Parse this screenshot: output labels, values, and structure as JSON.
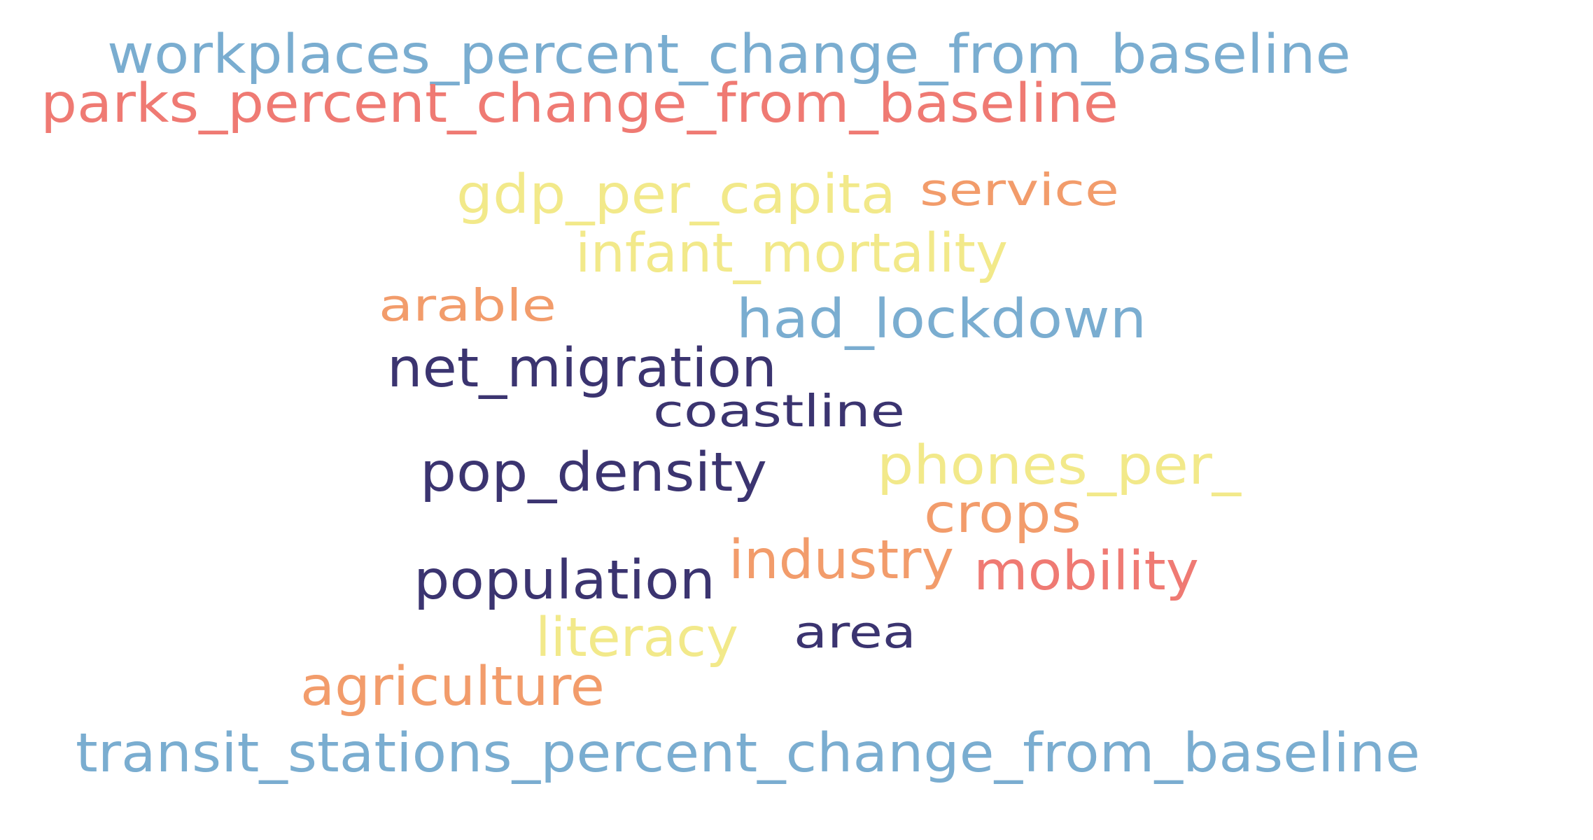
{
  "colors": {
    "blue": "#7aadd0",
    "red": "#ef7a73",
    "yellow": "#f2e98a",
    "orange": "#f29c6b",
    "navy": "#3b3470"
  },
  "words": [
    {
      "id": "workplaces",
      "text": "workplaces_percent_change_from_baseline",
      "color": "blue"
    },
    {
      "id": "parks",
      "text": "parks_percent_change_from_baseline",
      "color": "red"
    },
    {
      "id": "gdp",
      "text": "gdp_per_capita",
      "color": "yellow"
    },
    {
      "id": "service",
      "text": "service",
      "color": "orange"
    },
    {
      "id": "infant",
      "text": "infant_mortality",
      "color": "yellow"
    },
    {
      "id": "arable",
      "text": "arable",
      "color": "orange"
    },
    {
      "id": "lockdown",
      "text": "had_lockdown",
      "color": "blue"
    },
    {
      "id": "migration",
      "text": "net_migration",
      "color": "navy"
    },
    {
      "id": "coastline",
      "text": "coastline",
      "color": "navy"
    },
    {
      "id": "phones",
      "text": "phones_per_",
      "color": "yellow"
    },
    {
      "id": "density",
      "text": "pop_density",
      "color": "navy"
    },
    {
      "id": "crops",
      "text": "crops",
      "color": "orange"
    },
    {
      "id": "industry",
      "text": "industry",
      "color": "orange"
    },
    {
      "id": "mobility",
      "text": "mobility",
      "color": "red"
    },
    {
      "id": "population",
      "text": "population",
      "color": "navy"
    },
    {
      "id": "literacy",
      "text": "literacy",
      "color": "yellow"
    },
    {
      "id": "area",
      "text": "area",
      "color": "navy"
    },
    {
      "id": "agriculture",
      "text": "agriculture",
      "color": "orange"
    },
    {
      "id": "transit",
      "text": "transit_stations_percent_change_from_baseline",
      "color": "blue"
    }
  ]
}
